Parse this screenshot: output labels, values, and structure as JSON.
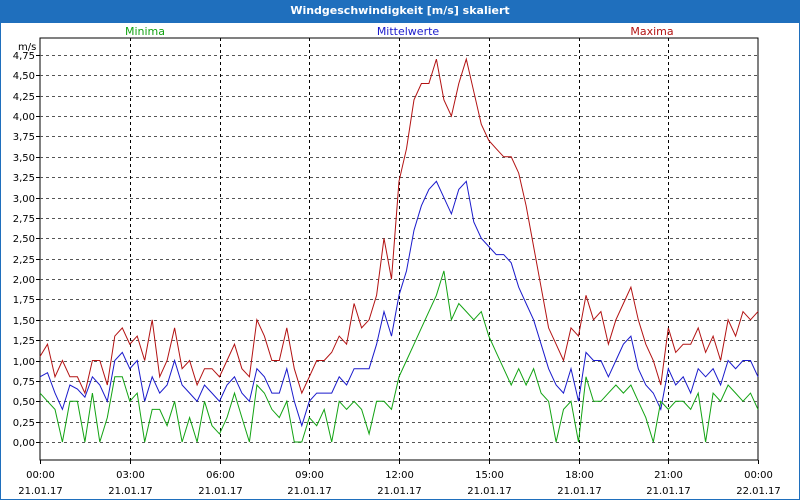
{
  "window": {
    "title": "Windgeschwindigkeit [m/s] skaliert"
  },
  "legend": [
    {
      "name": "Minima",
      "color": "#12a312"
    },
    {
      "name": "Mittelwerte",
      "color": "#1a1acc"
    },
    {
      "name": "Maxima",
      "color": "#b31212"
    }
  ],
  "chart_data": {
    "type": "line",
    "title": "Windgeschwindigkeit [m/s] skaliert",
    "ylabel": "m/s",
    "xlabel": "",
    "ylim": [
      0,
      4.75
    ],
    "xlim": [
      0,
      24
    ],
    "grid": true,
    "legend_position": "top",
    "y_ticks": [
      "0,00",
      "0,25",
      "0,50",
      "0,75",
      "1,00",
      "1,25",
      "1,50",
      "1,75",
      "2,00",
      "2,25",
      "2,50",
      "2,75",
      "3,00",
      "3,25",
      "3,50",
      "3,75",
      "4,00",
      "4,25",
      "4,50",
      "4,75"
    ],
    "x_ticks": [
      {
        "time": "00:00",
        "date": "21.01.17"
      },
      {
        "time": "03:00",
        "date": "21.01.17"
      },
      {
        "time": "06:00",
        "date": "21.01.17"
      },
      {
        "time": "09:00",
        "date": "21.01.17"
      },
      {
        "time": "12:00",
        "date": "21.01.17"
      },
      {
        "time": "15:00",
        "date": "21.01.17"
      },
      {
        "time": "18:00",
        "date": "21.01.17"
      },
      {
        "time": "21:00",
        "date": "21.01.17"
      },
      {
        "time": "00:00",
        "date": "22.01.17"
      }
    ],
    "series": [
      {
        "name": "Maxima",
        "color": "#b31212",
        "x": [
          0,
          0.25,
          0.5,
          0.75,
          1,
          1.25,
          1.5,
          1.75,
          2,
          2.25,
          2.5,
          2.75,
          3,
          3.25,
          3.5,
          3.75,
          4,
          4.25,
          4.5,
          4.75,
          5,
          5.25,
          5.5,
          5.75,
          6,
          6.25,
          6.5,
          6.75,
          7,
          7.25,
          7.5,
          7.75,
          8,
          8.25,
          8.5,
          8.75,
          9,
          9.25,
          9.5,
          9.75,
          10,
          10.25,
          10.5,
          10.75,
          11,
          11.25,
          11.5,
          11.75,
          12,
          12.25,
          12.5,
          12.75,
          13,
          13.25,
          13.5,
          13.75,
          14,
          14.25,
          14.5,
          14.75,
          15,
          15.25,
          15.5,
          15.75,
          16,
          16.25,
          16.5,
          16.75,
          17,
          17.25,
          17.5,
          17.75,
          18,
          18.25,
          18.5,
          18.75,
          19,
          19.25,
          19.5,
          19.75,
          20,
          20.25,
          20.5,
          20.75,
          21,
          21.25,
          21.5,
          21.75,
          22,
          22.25,
          22.5,
          22.75,
          23,
          23.25,
          23.5,
          23.75,
          24
        ],
        "values": [
          1.05,
          1.2,
          0.8,
          1.0,
          0.8,
          0.8,
          0.6,
          1.0,
          1.0,
          0.7,
          1.3,
          1.4,
          1.2,
          1.3,
          1.0,
          1.5,
          0.8,
          1.0,
          1.4,
          0.9,
          1.0,
          0.7,
          0.9,
          0.9,
          0.8,
          1.0,
          1.2,
          0.9,
          0.8,
          1.5,
          1.3,
          1.0,
          1.0,
          1.4,
          0.9,
          0.6,
          0.8,
          1.0,
          1.0,
          1.1,
          1.3,
          1.2,
          1.7,
          1.4,
          1.5,
          1.8,
          2.5,
          2.0,
          3.2,
          3.6,
          4.2,
          4.4,
          4.4,
          4.7,
          4.2,
          4.0,
          4.4,
          4.7,
          4.3,
          3.9,
          3.7,
          3.6,
          3.5,
          3.5,
          3.3,
          2.9,
          2.4,
          1.9,
          1.4,
          1.2,
          1.0,
          1.4,
          1.3,
          1.8,
          1.5,
          1.6,
          1.2,
          1.5,
          1.7,
          1.9,
          1.5,
          1.2,
          1.0,
          0.7,
          1.4,
          1.1,
          1.2,
          1.2,
          1.4,
          1.1,
          1.3,
          1.0,
          1.5,
          1.3,
          1.6,
          1.5,
          1.6
        ]
      },
      {
        "name": "Mittelwerte",
        "color": "#1a1acc",
        "x": [
          0,
          0.25,
          0.5,
          0.75,
          1,
          1.25,
          1.5,
          1.75,
          2,
          2.25,
          2.5,
          2.75,
          3,
          3.25,
          3.5,
          3.75,
          4,
          4.25,
          4.5,
          4.75,
          5,
          5.25,
          5.5,
          5.75,
          6,
          6.25,
          6.5,
          6.75,
          7,
          7.25,
          7.5,
          7.75,
          8,
          8.25,
          8.5,
          8.75,
          9,
          9.25,
          9.5,
          9.75,
          10,
          10.25,
          10.5,
          10.75,
          11,
          11.25,
          11.5,
          11.75,
          12,
          12.25,
          12.5,
          12.75,
          13,
          13.25,
          13.5,
          13.75,
          14,
          14.25,
          14.5,
          14.75,
          15,
          15.25,
          15.5,
          15.75,
          16,
          16.25,
          16.5,
          16.75,
          17,
          17.25,
          17.5,
          17.75,
          18,
          18.25,
          18.5,
          18.75,
          19,
          19.25,
          19.5,
          19.75,
          20,
          20.25,
          20.5,
          20.75,
          21,
          21.25,
          21.5,
          21.75,
          22,
          22.25,
          22.5,
          22.75,
          23,
          23.25,
          23.5,
          23.75,
          24
        ],
        "values": [
          0.8,
          0.85,
          0.6,
          0.4,
          0.7,
          0.65,
          0.55,
          0.8,
          0.7,
          0.5,
          1.0,
          1.1,
          0.9,
          1.0,
          0.5,
          0.8,
          0.6,
          0.7,
          1.0,
          0.7,
          0.6,
          0.5,
          0.7,
          0.6,
          0.5,
          0.7,
          0.8,
          0.6,
          0.5,
          0.9,
          0.8,
          0.6,
          0.6,
          0.9,
          0.5,
          0.2,
          0.5,
          0.6,
          0.6,
          0.6,
          0.8,
          0.7,
          0.9,
          0.9,
          0.9,
          1.2,
          1.6,
          1.3,
          1.8,
          2.1,
          2.6,
          2.9,
          3.1,
          3.2,
          3.0,
          2.8,
          3.1,
          3.2,
          2.7,
          2.5,
          2.4,
          2.3,
          2.3,
          2.2,
          1.9,
          1.7,
          1.5,
          1.2,
          0.9,
          0.7,
          0.6,
          0.9,
          0.5,
          1.1,
          1.0,
          1.0,
          0.8,
          1.0,
          1.2,
          1.3,
          0.9,
          0.7,
          0.6,
          0.4,
          0.9,
          0.7,
          0.8,
          0.6,
          0.9,
          0.8,
          0.9,
          0.7,
          1.0,
          0.9,
          1.0,
          1.0,
          0.8
        ]
      },
      {
        "name": "Minima",
        "color": "#12a312",
        "x": [
          0,
          0.25,
          0.5,
          0.75,
          1,
          1.25,
          1.5,
          1.75,
          2,
          2.25,
          2.5,
          2.75,
          3,
          3.25,
          3.5,
          3.75,
          4,
          4.25,
          4.5,
          4.75,
          5,
          5.25,
          5.5,
          5.75,
          6,
          6.25,
          6.5,
          6.75,
          7,
          7.25,
          7.5,
          7.75,
          8,
          8.25,
          8.5,
          8.75,
          9,
          9.25,
          9.5,
          9.75,
          10,
          10.25,
          10.5,
          10.75,
          11,
          11.25,
          11.5,
          11.75,
          12,
          12.25,
          12.5,
          12.75,
          13,
          13.25,
          13.5,
          13.75,
          14,
          14.25,
          14.5,
          14.75,
          15,
          15.25,
          15.5,
          15.75,
          16,
          16.25,
          16.5,
          16.75,
          17,
          17.25,
          17.5,
          17.75,
          18,
          18.25,
          18.5,
          18.75,
          19,
          19.25,
          19.5,
          19.75,
          20,
          20.25,
          20.5,
          20.75,
          21,
          21.25,
          21.5,
          21.75,
          22,
          22.25,
          22.5,
          22.75,
          23,
          23.25,
          23.5,
          23.75,
          24
        ],
        "values": [
          0.6,
          0.5,
          0.4,
          0.0,
          0.5,
          0.5,
          0.0,
          0.6,
          0.0,
          0.3,
          0.8,
          0.8,
          0.5,
          0.6,
          0.0,
          0.4,
          0.4,
          0.2,
          0.5,
          0.0,
          0.3,
          0.0,
          0.5,
          0.2,
          0.1,
          0.3,
          0.6,
          0.3,
          0.0,
          0.7,
          0.6,
          0.4,
          0.3,
          0.5,
          0.0,
          0.0,
          0.3,
          0.2,
          0.4,
          0.0,
          0.5,
          0.4,
          0.5,
          0.4,
          0.1,
          0.5,
          0.5,
          0.4,
          0.8,
          1.0,
          1.2,
          1.4,
          1.6,
          1.8,
          2.1,
          1.5,
          1.7,
          1.6,
          1.5,
          1.6,
          1.3,
          1.1,
          0.9,
          0.7,
          0.9,
          0.7,
          0.9,
          0.6,
          0.5,
          0.0,
          0.4,
          0.5,
          0.0,
          0.8,
          0.5,
          0.5,
          0.6,
          0.7,
          0.6,
          0.7,
          0.5,
          0.3,
          0.0,
          0.5,
          0.4,
          0.5,
          0.5,
          0.4,
          0.6,
          0.0,
          0.6,
          0.5,
          0.7,
          0.6,
          0.5,
          0.6,
          0.4
        ]
      }
    ]
  }
}
